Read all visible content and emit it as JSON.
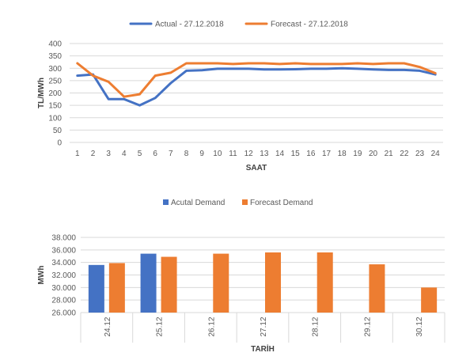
{
  "chart_data": [
    {
      "type": "line",
      "title": "",
      "xlabel": "SAAT",
      "ylabel": "TL/MWh",
      "categories": [
        "1",
        "2",
        "3",
        "4",
        "5",
        "6",
        "7",
        "8",
        "9",
        "10",
        "11",
        "12",
        "13",
        "14",
        "15",
        "16",
        "17",
        "18",
        "19",
        "20",
        "21",
        "22",
        "23",
        "24"
      ],
      "ylim": [
        0,
        400
      ],
      "yticks": [
        "0",
        "50",
        "100",
        "150",
        "200",
        "250",
        "300",
        "350",
        "400"
      ],
      "grid": true,
      "legend_position": "top",
      "series": [
        {
          "name": "Actual - 27.12.2018",
          "color": "#4472c4",
          "values": [
            270,
            275,
            175,
            175,
            150,
            180,
            240,
            290,
            292,
            298,
            298,
            298,
            295,
            295,
            296,
            298,
            298,
            300,
            298,
            295,
            293,
            293,
            290,
            275
          ]
        },
        {
          "name": "Forecast - 27.12.2018",
          "color": "#ed7d31",
          "values": [
            320,
            270,
            245,
            185,
            195,
            270,
            282,
            320,
            320,
            320,
            317,
            320,
            320,
            317,
            320,
            317,
            317,
            317,
            320,
            317,
            320,
            320,
            305,
            280
          ]
        }
      ]
    },
    {
      "type": "bar",
      "title": "",
      "xlabel": "TARİH",
      "ylabel": "MWh",
      "categories": [
        "24.12",
        "25.12",
        "26.12",
        "27.12",
        "28.12",
        "29.12",
        "30.12"
      ],
      "ylim": [
        26000,
        38000
      ],
      "yticks": [
        "26.000",
        "28.000",
        "30.000",
        "32.000",
        "34.000",
        "36.000",
        "38.000"
      ],
      "grid": true,
      "legend_position": "top",
      "series": [
        {
          "name": "Acutal Demand",
          "color": "#4472c4",
          "values": [
            33600,
            35400,
            null,
            null,
            null,
            null,
            null
          ]
        },
        {
          "name": "Forecast Demand",
          "color": "#ed7d31",
          "values": [
            33900,
            34900,
            35400,
            35600,
            35600,
            33700,
            30000
          ]
        }
      ]
    }
  ]
}
